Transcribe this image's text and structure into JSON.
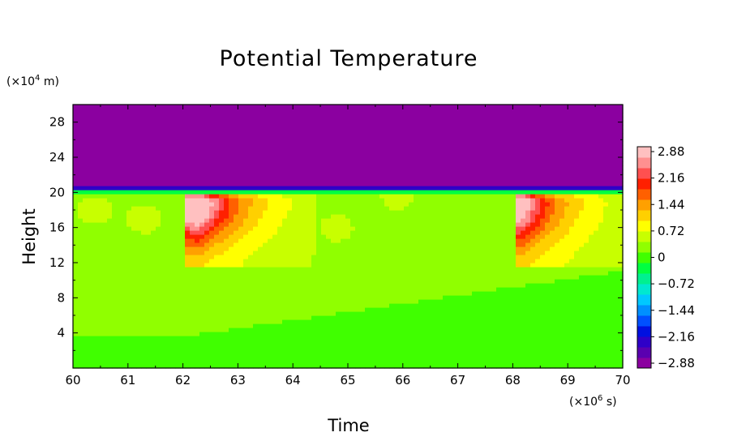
{
  "chart_data": {
    "type": "heatmap",
    "title": "Potential Temperature",
    "xlabel": "Time",
    "ylabel": "Height",
    "x_unit_prefix": "(×10",
    "x_unit_exp": "6",
    "x_unit_suffix": " s)",
    "y_unit_prefix": "(×10",
    "y_unit_exp": "4",
    "y_unit_suffix": " m)",
    "xlim": [
      60,
      70
    ],
    "ylim": [
      0,
      30
    ],
    "x_ticks": [
      "60",
      "61",
      "62",
      "63",
      "64",
      "65",
      "66",
      "67",
      "68",
      "69",
      "70"
    ],
    "y_ticks": [
      "4",
      "8",
      "12",
      "16",
      "20",
      "24",
      "28"
    ],
    "colorbar": {
      "labels": [
        "2.88",
        "2.16",
        "1.44",
        "0.72",
        "0",
        "−0.72",
        "−1.44",
        "−2.16",
        "−2.88"
      ],
      "range": [
        -3.2,
        3.2
      ],
      "colors": [
        "#8b00a0",
        "#5a00b0",
        "#2f00c8",
        "#0010e0",
        "#0050ff",
        "#0090ff",
        "#00c8ff",
        "#00e8d0",
        "#00f090",
        "#00ff40",
        "#40ff00",
        "#90ff00",
        "#c8ff00",
        "#ffff00",
        "#ffd000",
        "#ffa000",
        "#ff6000",
        "#ff2000",
        "#ff5050",
        "#ff9090",
        "#ffc0c0"
      ]
    },
    "features": {
      "tropopause_height": 20,
      "stratosphere_value": -3.2,
      "troposphere_background": 0.3,
      "warm_events": [
        {
          "start": 62.0,
          "peak_time": 62.3,
          "peak_height": 19,
          "peak_value": 2.9,
          "decay_end": 63.8
        },
        {
          "start": 68.0,
          "peak_time": 68.15,
          "peak_height": 19,
          "peak_value": 2.6,
          "decay_end": 69.5
        }
      ]
    }
  }
}
